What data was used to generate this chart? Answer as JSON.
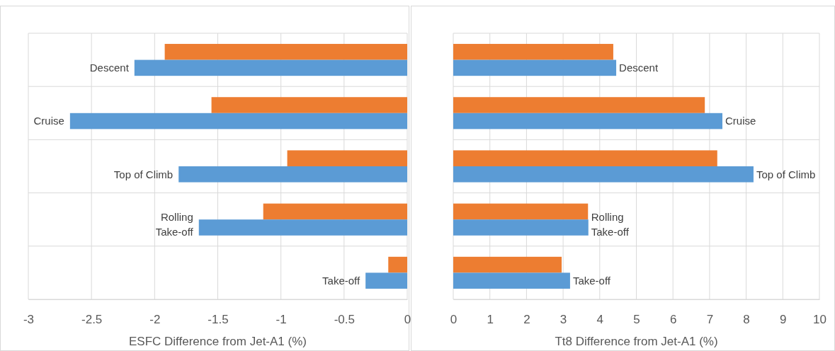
{
  "chart_data": [
    {
      "type": "bar",
      "orientation": "horizontal",
      "categories": [
        "Descent",
        "Cruise",
        "Top of Climb",
        "Rolling\nTake-off",
        "Take-off"
      ],
      "xlabel": "ESFC Difference from Jet-A1 (%)",
      "xlim": [
        -3,
        0
      ],
      "xticks": [
        -3,
        -2.5,
        -2,
        -1.5,
        -1,
        -0.5,
        0
      ],
      "grid": true,
      "series": [
        {
          "color": "#ed7d31",
          "values": [
            -1.92,
            -1.55,
            -0.95,
            -1.14,
            -0.15
          ]
        },
        {
          "color": "#5b9bd5",
          "values": [
            -2.16,
            -2.67,
            -1.81,
            -1.65,
            -0.33
          ]
        }
      ]
    },
    {
      "type": "bar",
      "orientation": "horizontal",
      "categories": [
        "Descent",
        "Cruise",
        "Top of Climb",
        "Rolling\nTake-off",
        "Take-off"
      ],
      "xlabel": "Tt8 Difference from Jet-A1 (%)",
      "xlim": [
        0,
        10
      ],
      "xticks": [
        0,
        1,
        2,
        3,
        4,
        5,
        6,
        7,
        8,
        9,
        10
      ],
      "grid": true,
      "series": [
        {
          "color": "#ed7d31",
          "values": [
            4.37,
            6.87,
            7.21,
            3.68,
            2.96
          ]
        },
        {
          "color": "#5b9bd5",
          "values": [
            4.45,
            7.35,
            8.2,
            3.69,
            3.19
          ]
        }
      ]
    }
  ]
}
